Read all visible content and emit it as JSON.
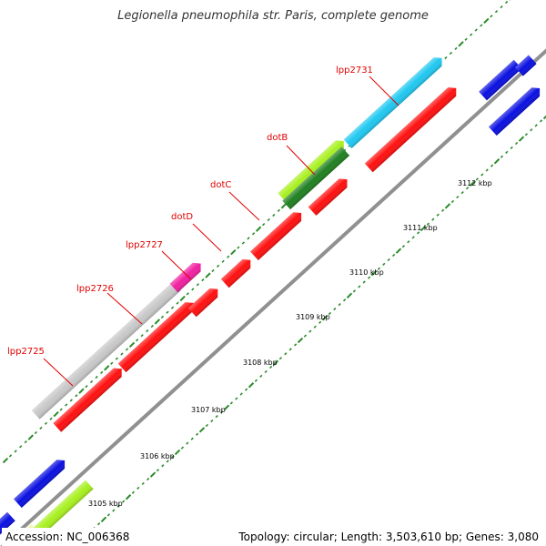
{
  "title": "Legionella pneumophila str. Paris, complete genome",
  "footer": {
    "accession": "Accession: NC_006368",
    "topology": "Topology: circular; Length: 3,503,610 bp; Genes: 3,080"
  },
  "colors": {
    "backbone": "#909090",
    "ticks": "#2a8a2a",
    "label": "#e00000",
    "red": "#ff1010",
    "grey": "#c8c8c8",
    "blue": "#0a10e0",
    "cyan": "#20c8f0",
    "pink": "#f020a0",
    "lime": "#a8f020",
    "darkgreen": "#208020",
    "yellow": "#f0f0a0"
  },
  "kbp_labels": [
    "3105 kbp",
    "3106 kbp",
    "3107 kbp",
    "3108 kbp",
    "3109 kbp",
    "3110 kbp",
    "3111 kbp",
    "3112 kbp"
  ],
  "gene_labels": [
    "lpp2725",
    "lpp2726",
    "lpp2727",
    "dotD",
    "dotC",
    "dotB",
    "lpp2731"
  ]
}
